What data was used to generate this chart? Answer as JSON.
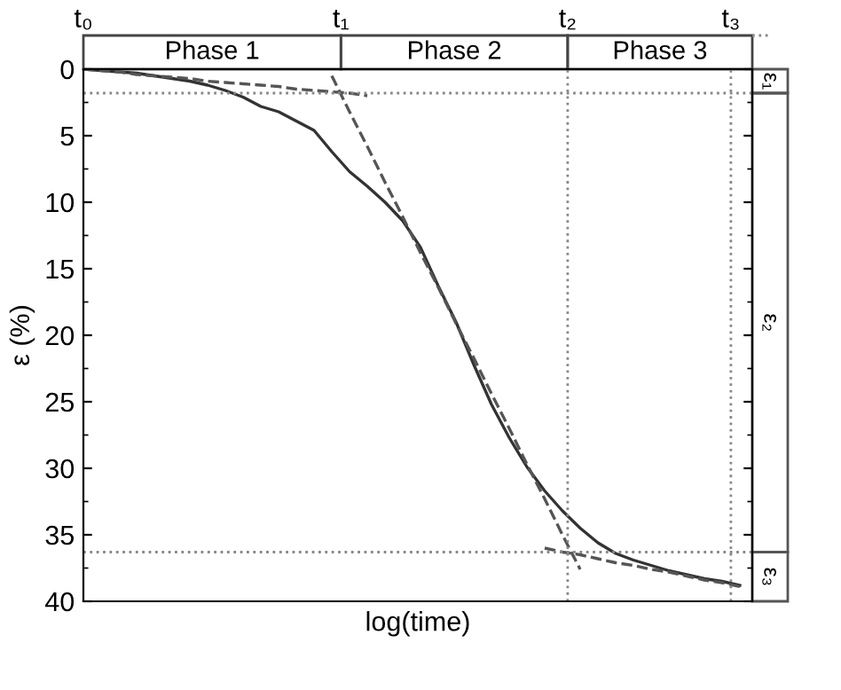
{
  "chart_data": {
    "type": "line",
    "xlabel": "log(time)",
    "ylabel": "ε (%)",
    "categories": [
      null,
      null,
      null,
      null,
      null,
      null,
      null,
      null,
      null,
      null,
      null,
      null,
      null,
      null,
      null,
      null,
      null,
      null,
      null,
      null,
      null,
      null,
      null,
      null,
      null,
      null,
      null,
      null,
      null,
      null,
      null,
      null,
      null,
      null,
      null,
      null,
      null,
      null
    ],
    "series": [
      {
        "color": "#333333",
        "line_style": "solid",
        "values": [
          0,
          0.1,
          0.2,
          0.3,
          0.5,
          0.7,
          0.9,
          1.2,
          1.6,
          2.1,
          2.8,
          3.2,
          3.9,
          4.6,
          6.2,
          7.7,
          8.8,
          10.0,
          11.4,
          13.4,
          16.3,
          19.0,
          22.2,
          25.2,
          27.7,
          29.9,
          31.7,
          33.2,
          34.5,
          35.6,
          36.4,
          36.9,
          37.3,
          37.7,
          38.0,
          38.3,
          38.5,
          38.8
        ]
      },
      {
        "color": "#555555",
        "line_style": "dashed",
        "values": [
          0,
          0.1,
          0.2,
          0.4,
          0.5,
          0.6,
          0.7,
          0.9,
          1.0,
          1.1,
          1.2,
          1.3,
          1.5,
          1.6,
          1.7,
          1.8,
          2.0,
          null,
          null,
          null,
          null,
          null,
          null,
          null,
          null,
          null,
          null,
          null,
          null,
          null,
          null,
          null,
          null,
          null,
          null,
          null,
          null,
          null
        ]
      },
      {
        "color": "#555555",
        "line_style": "dashed",
        "values": [
          null,
          null,
          null,
          null,
          null,
          null,
          null,
          null,
          null,
          null,
          null,
          null,
          null,
          null,
          0.5,
          3.2,
          5.8,
          8.5,
          11.1,
          13.8,
          16.4,
          19.1,
          21.7,
          24.4,
          27.0,
          29.7,
          32.3,
          35.0,
          37.6,
          null,
          null,
          null,
          null,
          null,
          null,
          null,
          null,
          null
        ]
      },
      {
        "color": "#555555",
        "line_style": "dashed",
        "values": [
          null,
          null,
          null,
          null,
          null,
          null,
          null,
          null,
          null,
          null,
          null,
          null,
          null,
          null,
          null,
          null,
          null,
          null,
          null,
          null,
          null,
          null,
          null,
          null,
          null,
          null,
          36.0,
          36.3,
          36.5,
          36.8,
          37.1,
          37.3,
          37.6,
          37.8,
          38.1,
          38.4,
          38.6,
          38.9
        ]
      }
    ],
    "ylim": [
      40,
      0
    ],
    "yticks": [
      0,
      5,
      10,
      15,
      20,
      25,
      30,
      35,
      40
    ],
    "tick_labels": "y",
    "grid": false,
    "legend": false,
    "ref_lines": [
      {
        "axis": "y",
        "value": 1.8,
        "line_style": "dotted",
        "color": "#888888"
      },
      {
        "axis": "y",
        "value": 36.3,
        "line_style": "dotted",
        "color": "#888888"
      }
    ],
    "annotations": [
      "t₀",
      "t₁",
      "t₂",
      "t₃",
      "Phase 1",
      "Phase 2",
      "Phase 3",
      "ε₁",
      "ε₂",
      "ε₃"
    ]
  }
}
